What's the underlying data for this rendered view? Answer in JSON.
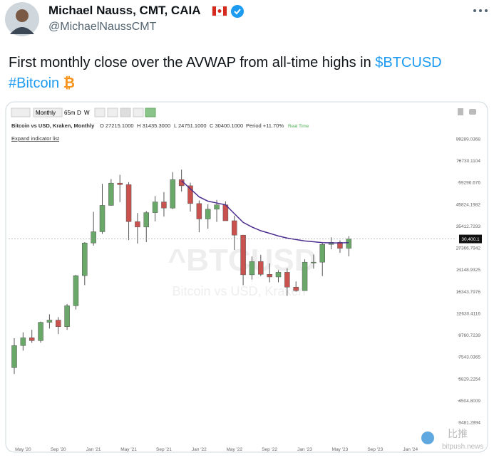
{
  "tweet": {
    "author": "Michael Nauss, CMT, CAIA",
    "handle": "@MichaelNaussCMT",
    "text": {
      "line1": "First monthly close over the AVWAP from all-time highs in ",
      "cashtag": "$BTCUSD",
      "hashtag": "#Bitcoin",
      "emoji": "₿"
    },
    "watermark": {
      "cn": "比推",
      "site": "bitpush.news"
    }
  },
  "chart_data": {
    "type": "candlestick",
    "toolbar": {
      "interval": "Monthly",
      "buttons": [
        "65m",
        "D",
        "W"
      ]
    },
    "symbol_line": "Bitcoin vs USD, Kraken, Monthly",
    "ohlc_labels": [
      "O 27215.1000",
      "H 31435.3000",
      "L 24751.1000",
      "C 30400.1000"
    ],
    "period_change": "Period +11.70%",
    "status": "Real Time",
    "expand_link": "Expand indicator list",
    "watermark": {
      "symbol": "^BTCUSD",
      "description": "Bitcoin vs USD, Kraken"
    },
    "last_close_label": "30,400.1",
    "categories": [
      null,
      "May '20",
      null,
      null,
      null,
      "Sep '20",
      null,
      null,
      null,
      "Jan '21",
      null,
      null,
      null,
      "May '21",
      null,
      null,
      null,
      "Sep '21",
      null,
      null,
      null,
      "Jan '22",
      null,
      null,
      null,
      "May '22",
      null,
      null,
      null,
      "Sep '22",
      null,
      null,
      null,
      "Jan '23",
      null,
      null,
      null,
      "May '23",
      null,
      null,
      null,
      "Sep '23",
      null,
      null,
      null,
      "Jan '24"
    ],
    "open": [
      6640,
      8620,
      9450,
      9140,
      11350,
      11650,
      10780,
      13800,
      19700,
      28990,
      33100,
      45200,
      58800,
      57800,
      37300,
      35000,
      41500,
      47100,
      43800,
      61300,
      57000,
      46200,
      38500,
      43200,
      45500,
      37700,
      31800,
      19900,
      23300,
      20000,
      19400,
      20500,
      17200,
      16500,
      23100,
      23100,
      28500,
      29200,
      27215.1,
      null,
      null,
      null,
      null,
      null,
      null,
      null
    ],
    "high": [
      9400,
      10080,
      10390,
      11450,
      12470,
      12070,
      14100,
      19900,
      29300,
      41900,
      58300,
      61700,
      64900,
      59500,
      41300,
      42300,
      50500,
      52900,
      67000,
      69000,
      59100,
      47900,
      45800,
      48200,
      47400,
      40000,
      31900,
      24700,
      25200,
      22800,
      21000,
      21500,
      18400,
      23900,
      25300,
      29200,
      31000,
      29900,
      31435.3,
      null,
      null,
      null,
      null,
      null,
      null,
      null
    ],
    "low": [
      6160,
      8120,
      8900,
      8920,
      10540,
      9880,
      10380,
      13200,
      17600,
      28100,
      32300,
      45000,
      47000,
      30000,
      28800,
      29300,
      37400,
      39600,
      43300,
      53300,
      42000,
      32900,
      34300,
      37200,
      37700,
      26700,
      17600,
      18800,
      19600,
      18200,
      18200,
      15500,
      16300,
      16500,
      21400,
      19600,
      26900,
      25800,
      24751.1,
      null,
      null,
      null,
      null,
      null,
      null,
      null
    ],
    "close": [
      8620,
      9450,
      9140,
      11350,
      11650,
      10780,
      13800,
      19700,
      28990,
      33100,
      45200,
      58800,
      57800,
      37300,
      35000,
      41500,
      47100,
      43800,
      61300,
      57000,
      46200,
      38500,
      43200,
      45500,
      37700,
      31800,
      19900,
      23300,
      20000,
      19400,
      20500,
      17200,
      16500,
      23100,
      23100,
      28500,
      29200,
      27215.1,
      30400.1,
      null,
      null,
      null,
      null,
      null,
      null,
      null
    ],
    "avwap": {
      "color": "#4a2d8f",
      "values": [
        null,
        null,
        null,
        null,
        null,
        null,
        null,
        null,
        null,
        null,
        null,
        null,
        null,
        null,
        null,
        null,
        null,
        null,
        null,
        60500,
        55000,
        50000,
        47500,
        46500,
        45500,
        41000,
        37000,
        35000,
        33500,
        32500,
        31500,
        30700,
        30200,
        29700,
        29400,
        29100,
        29000,
        29000,
        29100,
        null,
        null,
        null,
        null,
        null,
        null,
        null
      ]
    },
    "up_color": "#6aa86a",
    "down_color": "#c9524f",
    "log_scale": true,
    "ylim": [
      2660,
      112600
    ],
    "yticks": [
      3481.2894,
      4504.8009,
      5829.2254,
      7543.0365,
      9760.7239,
      12630.4116,
      16343.7976,
      21148.9325,
      27366.7942,
      35412.7293,
      45824.1982,
      59296.676,
      76730.1104,
      99289.0368
    ]
  }
}
